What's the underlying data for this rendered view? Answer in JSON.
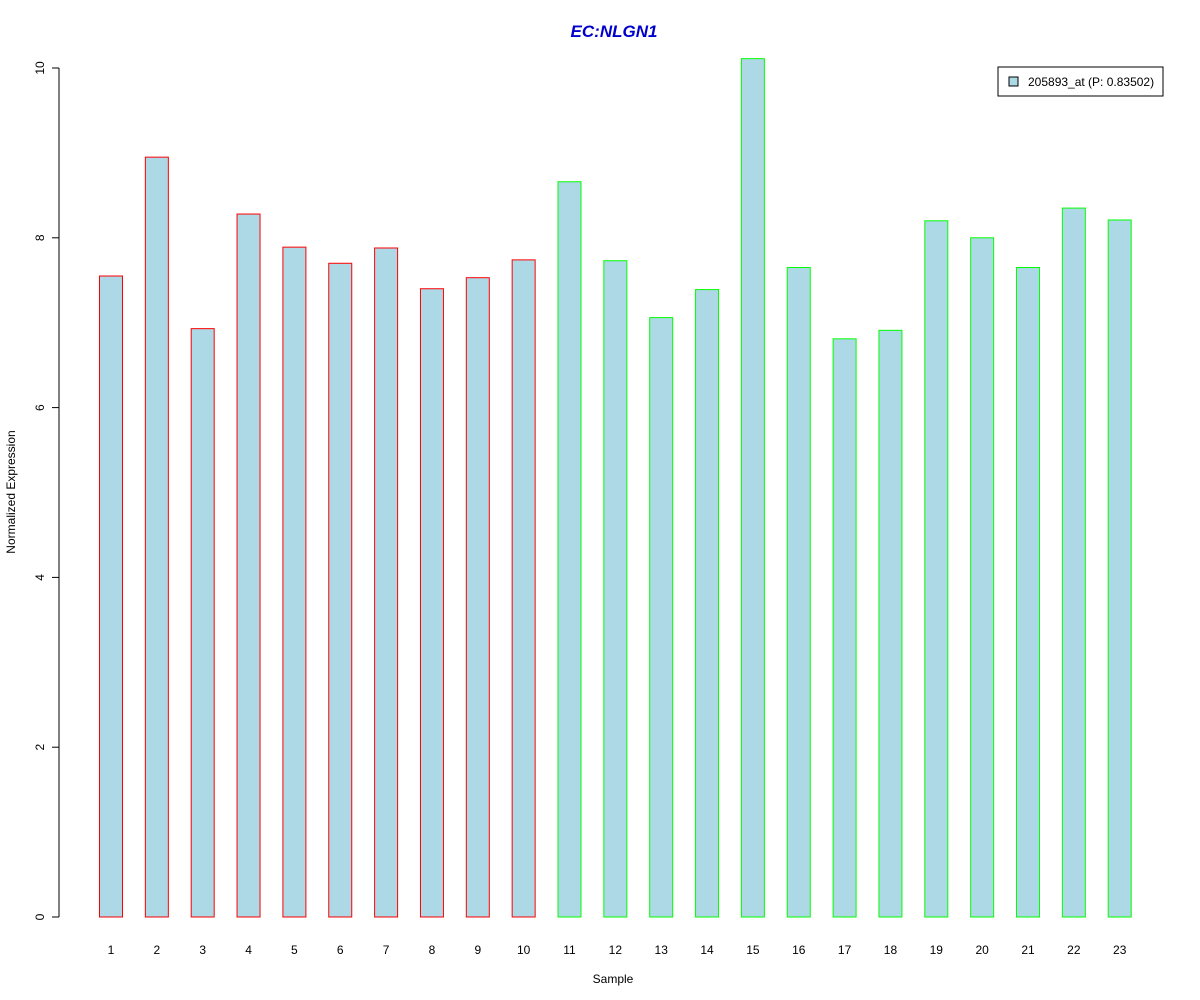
{
  "chart_data": {
    "type": "bar",
    "title": "EC:NLGN1",
    "xlabel": "Sample",
    "ylabel": "Normalized Expression",
    "ylim": [
      0,
      10
    ],
    "yticks": [
      0,
      2,
      4,
      6,
      8,
      10
    ],
    "grid": false,
    "legend_position": "top-right",
    "categories": [
      "1",
      "2",
      "3",
      "4",
      "5",
      "6",
      "7",
      "8",
      "9",
      "10",
      "11",
      "12",
      "13",
      "14",
      "15",
      "16",
      "17",
      "18",
      "19",
      "20",
      "21",
      "22",
      "23"
    ],
    "series": [
      {
        "name": "205893_at (P: 0.83502)",
        "values": [
          7.55,
          8.95,
          6.93,
          8.28,
          7.89,
          7.7,
          7.88,
          7.4,
          7.53,
          7.74,
          8.66,
          7.73,
          7.06,
          7.39,
          10.11,
          7.65,
          6.81,
          6.91,
          8.2,
          8.0,
          7.65,
          8.35,
          8.21
        ],
        "group": [
          "red",
          "red",
          "red",
          "red",
          "red",
          "red",
          "red",
          "red",
          "red",
          "red",
          "green",
          "green",
          "green",
          "green",
          "green",
          "green",
          "green",
          "green",
          "green",
          "green",
          "green",
          "green",
          "green"
        ]
      }
    ],
    "colors": {
      "bar_fill": "#add8e6",
      "group_red": "#ff0000",
      "group_green": "#00ff00",
      "title": "#0000cc",
      "axis": "#000000"
    }
  }
}
